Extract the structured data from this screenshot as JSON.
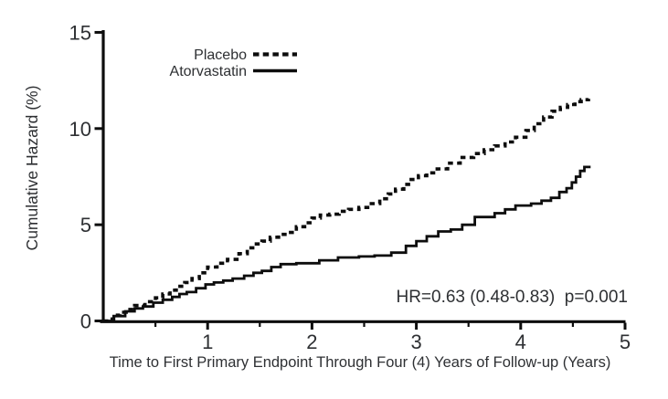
{
  "figure": {
    "background_color": "#ffffff",
    "text_color": "#2e3033",
    "line_color": "#0d0d0d"
  },
  "chart_data": {
    "type": "line",
    "subtype": "step-cumulative-hazard",
    "title": "",
    "xlabel": "Time to First Primary Endpoint Through Four (4) Years of Follow-up (Years)",
    "ylabel": "Cumulative Hazard (%)",
    "xlim": [
      0,
      5
    ],
    "ylim": [
      0,
      15
    ],
    "x_ticks": [
      1,
      2,
      3,
      4,
      5
    ],
    "x_minor_ticks": [
      0.5,
      1.5,
      2.5,
      3.5,
      4.5
    ],
    "y_ticks": [
      0,
      5,
      10,
      15
    ],
    "grid": false,
    "legend_position": "top-left-inside",
    "annotation": "HR=0.63 (0.48-0.83)  p=0.001",
    "series": [
      {
        "name": "Placebo",
        "line_style": "dashed",
        "color": "#0d0d0d",
        "x": [
          0,
          0.05,
          0.1,
          0.16,
          0.22,
          0.3,
          0.4,
          0.5,
          0.57,
          0.64,
          0.7,
          0.78,
          0.85,
          0.92,
          1.0,
          1.09,
          1.19,
          1.3,
          1.38,
          1.45,
          1.52,
          1.6,
          1.68,
          1.76,
          1.85,
          1.93,
          2.0,
          2.08,
          2.17,
          2.26,
          2.35,
          2.45,
          2.55,
          2.65,
          2.73,
          2.8,
          2.88,
          2.95,
          3.02,
          3.1,
          3.2,
          3.3,
          3.42,
          3.55,
          3.65,
          3.75,
          3.85,
          3.95,
          4.05,
          4.13,
          4.22,
          4.3,
          4.38,
          4.45,
          4.52,
          4.58,
          4.65
        ],
        "y": [
          0,
          0.1,
          0.3,
          0.45,
          0.6,
          0.8,
          1.0,
          1.2,
          1.4,
          1.6,
          1.8,
          2.0,
          2.2,
          2.5,
          2.8,
          3.0,
          3.2,
          3.5,
          3.8,
          4.0,
          4.15,
          4.35,
          4.5,
          4.6,
          4.9,
          5.1,
          5.35,
          5.5,
          5.55,
          5.7,
          5.8,
          5.9,
          6.1,
          6.35,
          6.6,
          6.85,
          7.1,
          7.35,
          7.55,
          7.7,
          7.9,
          8.2,
          8.5,
          8.7,
          8.9,
          9.1,
          9.3,
          9.55,
          9.9,
          10.25,
          10.6,
          10.9,
          11.1,
          11.25,
          11.4,
          11.5,
          11.55
        ]
      },
      {
        "name": "Atorvastatin",
        "line_style": "solid",
        "color": "#0d0d0d",
        "x": [
          0,
          0.1,
          0.21,
          0.3,
          0.38,
          0.48,
          0.57,
          0.66,
          0.73,
          0.8,
          0.89,
          0.98,
          1.06,
          1.15,
          1.24,
          1.35,
          1.44,
          1.52,
          1.61,
          1.7,
          1.85,
          2.07,
          2.25,
          2.45,
          2.6,
          2.76,
          2.9,
          3.0,
          3.1,
          3.21,
          3.33,
          3.44,
          3.56,
          3.75,
          3.85,
          3.95,
          4.1,
          4.2,
          4.29,
          4.37,
          4.44,
          4.49,
          4.53,
          4.57,
          4.61,
          4.67
        ],
        "y": [
          0,
          0.25,
          0.5,
          0.65,
          0.75,
          0.95,
          1.1,
          1.25,
          1.4,
          1.5,
          1.7,
          1.9,
          2.0,
          2.1,
          2.2,
          2.35,
          2.5,
          2.6,
          2.8,
          2.95,
          3.0,
          3.15,
          3.3,
          3.35,
          3.4,
          3.55,
          3.9,
          4.15,
          4.4,
          4.65,
          4.75,
          5.0,
          5.4,
          5.6,
          5.8,
          6.0,
          6.1,
          6.25,
          6.4,
          6.7,
          6.9,
          7.2,
          7.5,
          7.8,
          8.0,
          8.0
        ]
      }
    ]
  }
}
